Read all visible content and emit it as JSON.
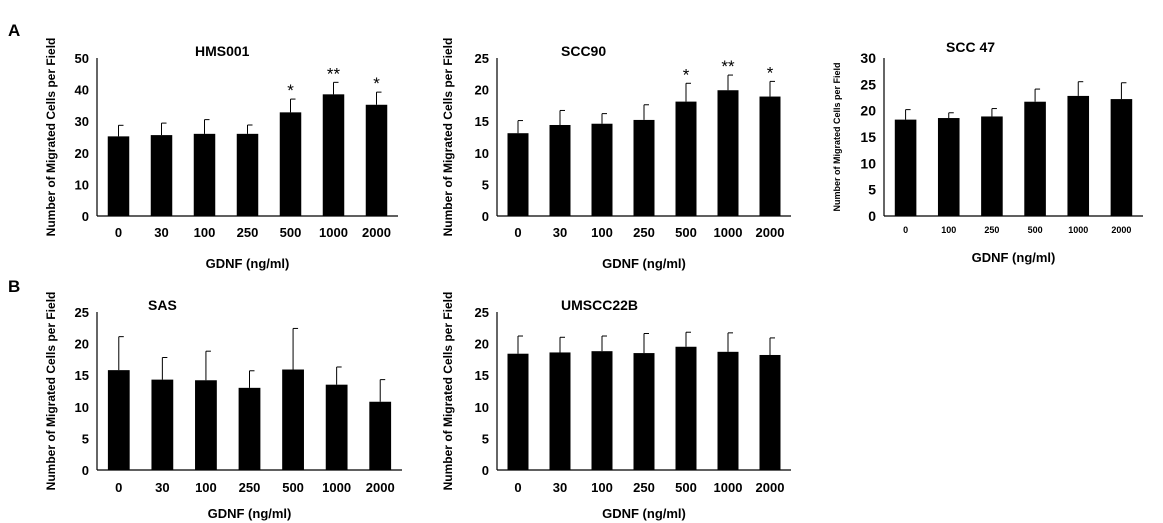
{
  "figure": {
    "panels": [
      {
        "letter": "A"
      },
      {
        "letter": "B"
      }
    ]
  },
  "chart_data": [
    {
      "type": "bar",
      "panel": "A",
      "title": "HMS001",
      "xlabel": "GDNF (ng/ml)",
      "ylabel": "Number of Migrated  Cells per Field",
      "categories": [
        "0",
        "30",
        "100",
        "250",
        "500",
        "1000",
        "2000"
      ],
      "values": [
        25.2,
        25.6,
        26.0,
        26.0,
        32.8,
        38.5,
        35.2
      ],
      "errors": [
        3.5,
        3.8,
        4.5,
        2.8,
        4.2,
        3.8,
        4.0
      ],
      "significance": [
        "",
        "",
        "",
        "",
        "*",
        "**",
        "*"
      ],
      "ylim": [
        0,
        50
      ],
      "yticks": [
        0,
        10,
        20,
        30,
        40,
        50
      ],
      "bar_color": "#000000"
    },
    {
      "type": "bar",
      "panel": "A",
      "title": "SCC90",
      "xlabel": "GDNF (ng/ml)",
      "ylabel": "Number of Migrated  Cells per Field",
      "categories": [
        "0",
        "30",
        "100",
        "250",
        "500",
        "1000",
        "2000"
      ],
      "values": [
        13.1,
        14.4,
        14.6,
        15.2,
        18.1,
        19.9,
        18.9
      ],
      "errors": [
        2.0,
        2.3,
        1.6,
        2.4,
        2.9,
        2.4,
        2.4
      ],
      "significance": [
        "",
        "",
        "",
        "",
        "*",
        "**",
        "*"
      ],
      "ylim": [
        0,
        25
      ],
      "yticks": [
        0,
        5,
        10,
        15,
        20,
        25
      ],
      "bar_color": "#000000"
    },
    {
      "type": "bar",
      "panel": "A",
      "title": "SCC 47",
      "xlabel": "GDNF (ng/ml)",
      "ylabel": "Number of Migrated Cells per Field",
      "categories": [
        "0",
        "100",
        "250",
        "500",
        "1000",
        "2000"
      ],
      "values": [
        18.3,
        18.6,
        18.9,
        21.7,
        22.8,
        22.2
      ],
      "errors": [
        1.9,
        1.0,
        1.5,
        2.4,
        2.7,
        3.1
      ],
      "significance": [
        "",
        "",
        "",
        "",
        "",
        ""
      ],
      "ylim": [
        0,
        30
      ],
      "yticks": [
        0,
        5,
        10,
        15,
        20,
        25,
        30
      ],
      "bar_color": "#000000"
    },
    {
      "type": "bar",
      "panel": "B",
      "title": "SAS",
      "xlabel": "GDNF (ng/ml)",
      "ylabel": "Number of Migrated  Cells per Field",
      "categories": [
        "0",
        "30",
        "100",
        "250",
        "500",
        "1000",
        "2000"
      ],
      "values": [
        15.8,
        14.3,
        14.2,
        13.0,
        15.9,
        13.5,
        10.8
      ],
      "errors": [
        5.3,
        3.5,
        4.6,
        2.7,
        6.5,
        2.8,
        3.5
      ],
      "significance": [
        "",
        "",
        "",
        "",
        "",
        "",
        ""
      ],
      "ylim": [
        0,
        25
      ],
      "yticks": [
        0,
        5,
        10,
        15,
        20,
        25
      ],
      "bar_color": "#000000"
    },
    {
      "type": "bar",
      "panel": "B",
      "title": "UMSCC22B",
      "xlabel": "GDNF (ng/ml)",
      "ylabel": "Number of Migrated  Cells per Field",
      "categories": [
        "0",
        "30",
        "100",
        "250",
        "500",
        "1000",
        "2000"
      ],
      "values": [
        18.4,
        18.6,
        18.8,
        18.5,
        19.5,
        18.7,
        18.2
      ],
      "errors": [
        2.8,
        2.4,
        2.4,
        3.1,
        2.3,
        3.0,
        2.7
      ],
      "significance": [
        "",
        "",
        "",
        "",
        "",
        "",
        ""
      ],
      "ylim": [
        0,
        25
      ],
      "yticks": [
        0,
        5,
        10,
        15,
        20,
        25
      ],
      "bar_color": "#000000"
    }
  ]
}
